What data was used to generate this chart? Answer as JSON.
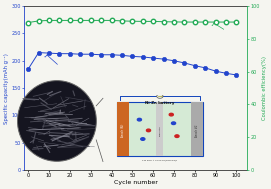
{
  "cycles": [
    0,
    5,
    10,
    15,
    20,
    25,
    30,
    35,
    40,
    45,
    50,
    55,
    60,
    65,
    70,
    75,
    80,
    85,
    90,
    95,
    100
  ],
  "specific_capacity": [
    185,
    215,
    214,
    213,
    213,
    212,
    212,
    211,
    211,
    210,
    208,
    207,
    205,
    203,
    200,
    196,
    191,
    187,
    181,
    177,
    174
  ],
  "coulombic_efficiency_pct": [
    90,
    91,
    91.3,
    91.3,
    91.3,
    91.3,
    91.3,
    91.3,
    91.3,
    91.0,
    90.8,
    90.7,
    90.7,
    90.5,
    90.4,
    90.3,
    90.3,
    90.3,
    90.3,
    90.3,
    90.3
  ],
  "capacity_color": "#2244cc",
  "efficiency_color": "#22aa55",
  "bg_color": "#f5f5f0",
  "ylabel_left": "Specific capacity(mAh g⁻¹)",
  "ylabel_right": "Coulombic efficiency(%)",
  "xlabel": "Cycle number",
  "ylim_left": [
    0,
    300
  ],
  "ylim_right": [
    0,
    100
  ],
  "yticks_left": [
    0,
    50,
    100,
    150,
    200,
    250,
    300
  ],
  "yticks_right": [
    0,
    20,
    40,
    60,
    80,
    100
  ],
  "xlim": [
    -2,
    105
  ],
  "xticks": [
    0,
    10,
    20,
    30,
    40,
    50,
    60,
    70,
    80,
    90,
    100
  ]
}
